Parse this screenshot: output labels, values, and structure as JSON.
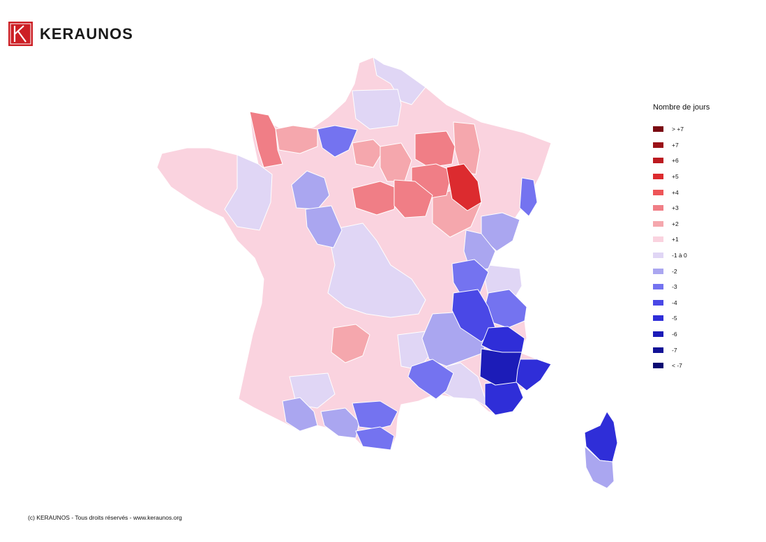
{
  "brand": {
    "name": "KERAUNOS"
  },
  "legend": {
    "title": "Nombre de jours",
    "items": [
      {
        "label": "> +7",
        "color": "#7a0b12"
      },
      {
        "label": "+7",
        "color": "#9b1218"
      },
      {
        "label": "+6",
        "color": "#bc1a20"
      },
      {
        "label": "+5",
        "color": "#dc2b2f"
      },
      {
        "label": "+4",
        "color": "#ee5558"
      },
      {
        "label": "+3",
        "color": "#f07e86"
      },
      {
        "label": "+2",
        "color": "#f5a7ad"
      },
      {
        "label": "+1",
        "color": "#fad3df"
      },
      {
        "label": "-1 à 0",
        "color": "#e0d6f5"
      },
      {
        "label": "-2",
        "color": "#aaa6f0"
      },
      {
        "label": "-3",
        "color": "#7473f0"
      },
      {
        "label": "-4",
        "color": "#4a48e6"
      },
      {
        "label": "-5",
        "color": "#2f2ed8"
      },
      {
        "label": "-6",
        "color": "#1c1cb8"
      },
      {
        "label": "-7",
        "color": "#121296"
      },
      {
        "label": "< -7",
        "color": "#0a0a72"
      }
    ]
  },
  "footer": {
    "copyright": "(c) KERAUNOS - Tous droits réservés - www.keraunos.org"
  }
}
